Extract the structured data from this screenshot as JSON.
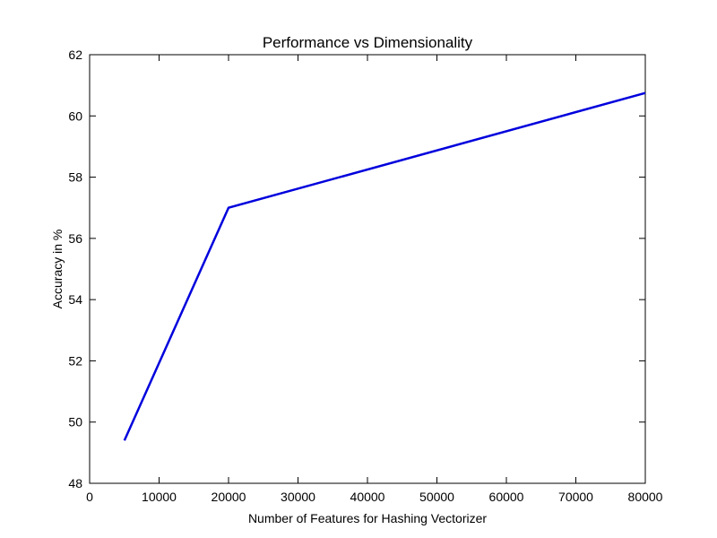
{
  "chart_data": {
    "type": "line",
    "title": "Performance vs Dimensionality",
    "xlabel": "Number of Features for Hashing Vectorizer",
    "ylabel": "Accuracy in %",
    "xlim": [
      0,
      80000
    ],
    "ylim": [
      48,
      62
    ],
    "xticks": [
      0,
      10000,
      20000,
      30000,
      40000,
      50000,
      60000,
      70000,
      80000
    ],
    "yticks": [
      48,
      50,
      52,
      54,
      56,
      58,
      60,
      62
    ],
    "grid": false,
    "legend": "none",
    "series": [
      {
        "color": "#0000dd",
        "x": [
          5000,
          20000,
          80000
        ],
        "y": [
          49.4,
          57.0,
          60.75
        ]
      }
    ]
  }
}
